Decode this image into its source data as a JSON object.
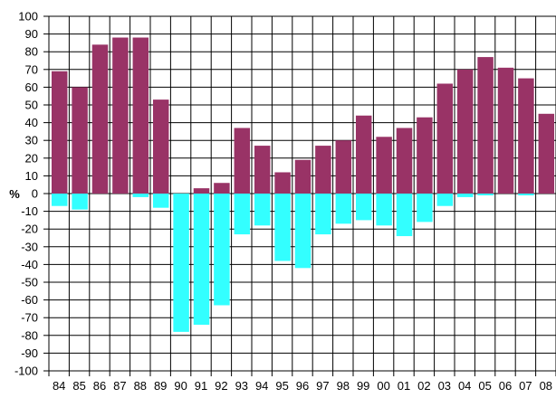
{
  "chart_data": {
    "type": "bar",
    "title": "",
    "xlabel": "",
    "ylabel": "%",
    "ylim": [
      -100,
      100
    ],
    "ytick_step": 10,
    "grid": true,
    "categories": [
      "84",
      "85",
      "86",
      "87",
      "88",
      "89",
      "90",
      "91",
      "92",
      "93",
      "94",
      "95",
      "96",
      "97",
      "98",
      "99",
      "00",
      "01",
      "02",
      "03",
      "04",
      "05",
      "06",
      "07",
      "08"
    ],
    "series": [
      {
        "color": "#993366",
        "values": [
          69,
          60,
          84,
          88,
          88,
          53,
          0,
          3,
          6,
          37,
          27,
          12,
          19,
          27,
          30,
          44,
          32,
          37,
          43,
          62,
          70,
          77,
          71,
          65,
          45
        ]
      },
      {
        "color": "#33FFFF",
        "values": [
          -7,
          -9,
          0,
          0,
          -2,
          -8,
          -78,
          -74,
          -63,
          -23,
          -18,
          -38,
          -42,
          -23,
          -17,
          -15,
          -18,
          -24,
          -16,
          -7,
          -2,
          -1,
          0,
          -1,
          0
        ]
      }
    ]
  }
}
